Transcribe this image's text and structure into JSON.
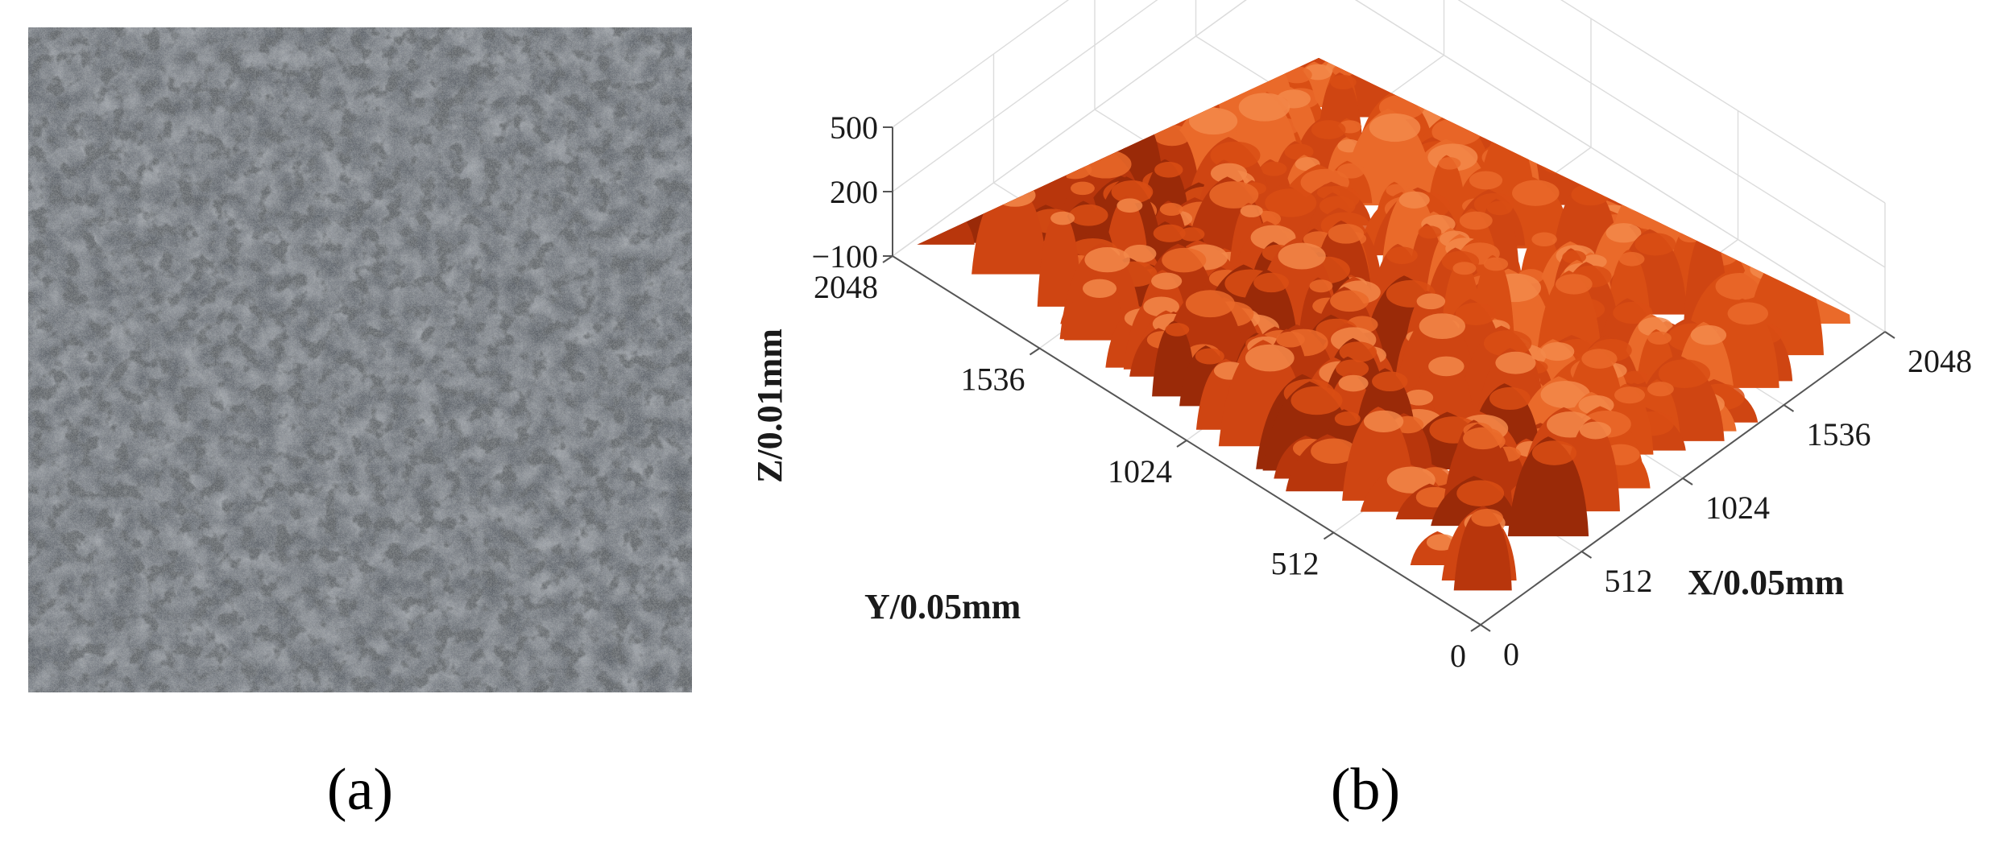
{
  "panels": [
    {
      "label": "(a)"
    },
    {
      "label": "(b)"
    }
  ],
  "colors": {
    "asphalt_base": "#5f646b",
    "asphalt_dark": "#2c2f33",
    "asphalt_light": "#8c9096",
    "grid": "#dcdcdc",
    "axis": "#555555",
    "surface_low": "#9a2a08",
    "surface_mid": "#d94e14",
    "surface_high": "#f8a66c"
  },
  "chart_data": {
    "type": "surface",
    "xlabel": "X/0.05mm",
    "ylabel": "Y/0.05mm",
    "zlabel": "Z/0.01mm",
    "x_ticks": [
      0,
      512,
      1024,
      1536,
      2048
    ],
    "y_ticks": [
      0,
      512,
      1024,
      1536,
      2048
    ],
    "z_ticks": [
      -100,
      200,
      500
    ],
    "xlim": [
      0,
      2048
    ],
    "ylim": [
      0,
      2048
    ],
    "zlim": [
      -100,
      500
    ],
    "grid": true,
    "colormap": "orange-red"
  }
}
